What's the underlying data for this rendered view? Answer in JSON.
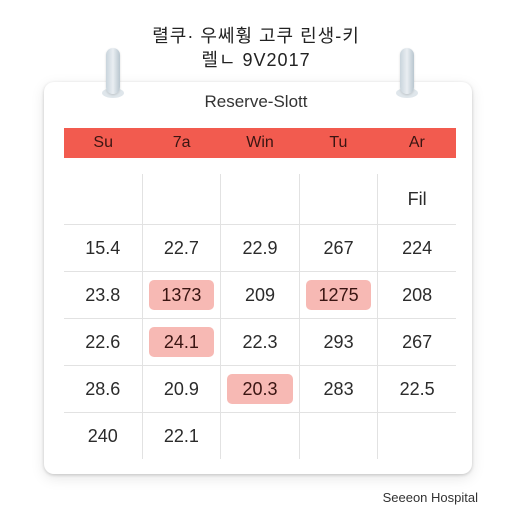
{
  "heading": {
    "line1": "렬쿠· 우쎄훵 고쿠 린생-키",
    "line2": "렐ㄴ 9V2017"
  },
  "calendar": {
    "title": "Reserve-Slott",
    "weekdays": [
      "Su",
      "7a",
      "Win",
      "Tu",
      "Ar"
    ],
    "rows": [
      [
        {
          "text": "",
          "highlight": false
        },
        {
          "text": "",
          "highlight": false
        },
        {
          "text": "",
          "highlight": false
        },
        {
          "text": "",
          "highlight": false
        },
        {
          "text": "Fil",
          "highlight": false
        }
      ],
      [
        {
          "text": "15.4",
          "highlight": false
        },
        {
          "text": "22.7",
          "highlight": false
        },
        {
          "text": "22.9",
          "highlight": false
        },
        {
          "text": "267",
          "highlight": false
        },
        {
          "text": "224",
          "highlight": false
        }
      ],
      [
        {
          "text": "23.8",
          "highlight": false
        },
        {
          "text": "1373",
          "highlight": true
        },
        {
          "text": "209",
          "highlight": false
        },
        {
          "text": "1275",
          "highlight": true
        },
        {
          "text": "208",
          "highlight": false
        }
      ],
      [
        {
          "text": "22.6",
          "highlight": false
        },
        {
          "text": "24.1",
          "highlight": true
        },
        {
          "text": "22.3",
          "highlight": false
        },
        {
          "text": "293",
          "highlight": false
        },
        {
          "text": "267",
          "highlight": false
        }
      ],
      [
        {
          "text": "28.6",
          "highlight": false
        },
        {
          "text": "20.9",
          "highlight": false
        },
        {
          "text": "20.3",
          "highlight": true
        },
        {
          "text": "283",
          "highlight": false
        },
        {
          "text": "22.5",
          "highlight": false
        }
      ],
      [
        {
          "text": "240",
          "highlight": false
        },
        {
          "text": "22.1",
          "highlight": false
        },
        {
          "text": "",
          "highlight": false
        },
        {
          "text": "",
          "highlight": false
        },
        {
          "text": "",
          "highlight": false
        }
      ]
    ]
  },
  "footer": {
    "text": "Seeeon Hospital"
  },
  "colors": {
    "header_bar": "#f25b4f",
    "highlight": "#f7b9b4"
  }
}
